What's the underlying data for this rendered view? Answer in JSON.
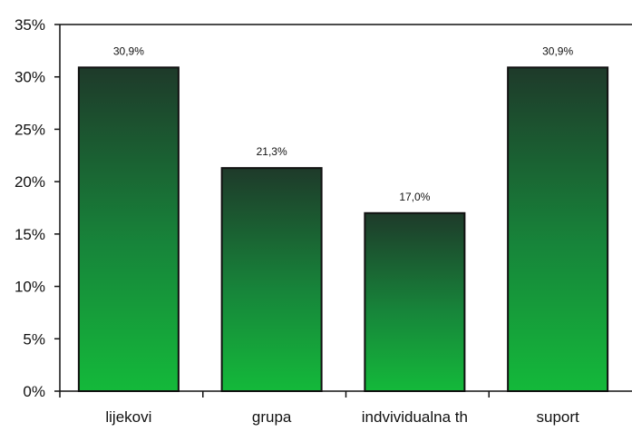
{
  "chart_data": {
    "type": "bar",
    "title": "",
    "xlabel": "",
    "ylabel": "",
    "categories": [
      "lijekovi",
      "grupa",
      "indvividualna th",
      "suport"
    ],
    "values": [
      30.9,
      21.3,
      17.0,
      30.9
    ],
    "data_labels": [
      "30,9%",
      "21,3%",
      "17,0%",
      "30,9%"
    ],
    "ylim": [
      0,
      35
    ],
    "yticks": [
      {
        "value": 35,
        "label": "35%"
      },
      {
        "value": 30,
        "label": "30%"
      },
      {
        "value": 25,
        "label": "25%"
      },
      {
        "value": 20,
        "label": "20%"
      },
      {
        "value": 15,
        "label": "15%"
      },
      {
        "value": 10,
        "label": "10%"
      },
      {
        "value": 5,
        "label": "5%"
      },
      {
        "value": 0,
        "label": "0%"
      }
    ],
    "grid": false,
    "legend": "none",
    "colors": {
      "bar_top": "#1e3a2a",
      "bar_bottom": "#14b93a",
      "bar_outline": "#111111",
      "axis": "#111111"
    }
  }
}
